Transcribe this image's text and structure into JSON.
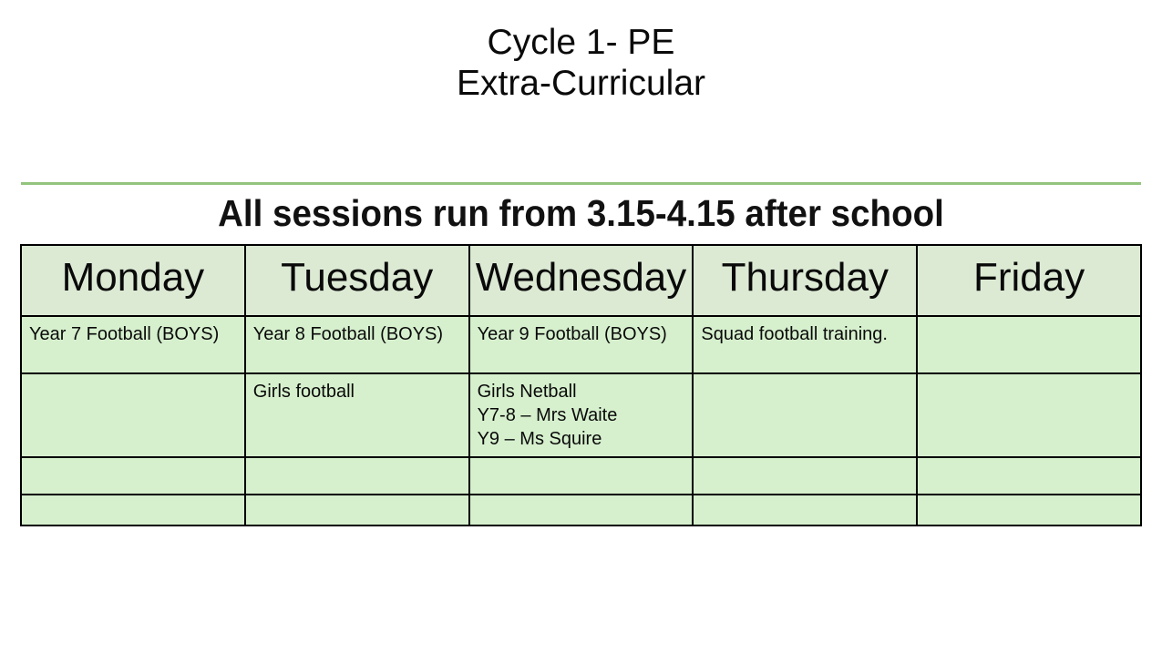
{
  "page": {
    "title_line1": "Cycle 1- PE",
    "title_line2": "Extra-Curricular",
    "heading": "All sessions run from 3.15-4.15 after school"
  },
  "colors": {
    "divider_green": "#93c47d",
    "header_cell_bg": "#dcead4",
    "body_cell_bg": "#d6f0cd",
    "table_border": "#000000",
    "text": "#000000"
  },
  "timetable": {
    "days": [
      "Monday",
      "Tuesday",
      "Wednesday",
      "Thursday",
      "Friday"
    ],
    "rows": [
      {
        "cells": [
          "Year 7 Football (BOYS)",
          "Year 8 Football (BOYS)",
          "Year 9 Football (BOYS)",
          "Squad football training.",
          ""
        ]
      },
      {
        "cells": [
          "",
          "Girls football",
          "Girls Netball\nY7-8 – Mrs Waite\nY9 – Ms Squire",
          "",
          ""
        ]
      },
      {
        "cells": [
          "",
          "",
          "",
          "",
          ""
        ]
      },
      {
        "cells": [
          "",
          "",
          "",
          "",
          ""
        ]
      }
    ]
  }
}
